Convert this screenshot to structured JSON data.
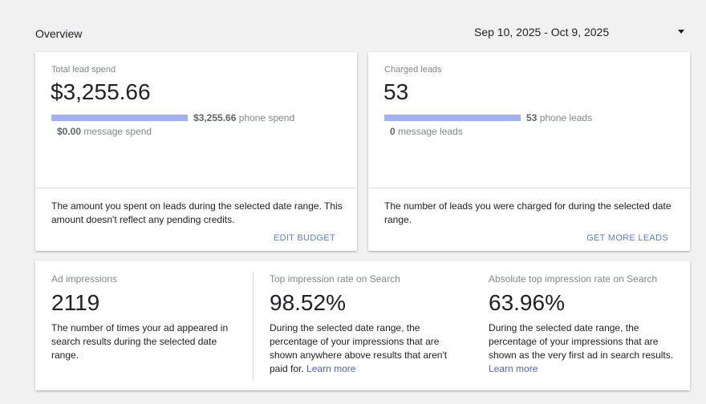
{
  "header": {
    "title": "Overview",
    "date_range": "Sep 10, 2025 - Oct 9, 2025"
  },
  "spend_card": {
    "label": "Total lead spend",
    "value": "$3,255.66",
    "bar_amount": "$3,255.66",
    "bar_suffix": "phone spend",
    "sub_amount": "$0.00",
    "sub_suffix": "message spend",
    "description": "The amount you spent on leads during the selected date range. This amount doesn't reflect any pending credits.",
    "action": "EDIT BUDGET"
  },
  "leads_card": {
    "label": "Charged leads",
    "value": "53",
    "bar_amount": "53",
    "bar_suffix": "phone leads",
    "sub_amount": "0",
    "sub_suffix": "message leads",
    "description": "The number of leads you were charged for during the selected date range.",
    "action": "GET MORE LEADS"
  },
  "impressions_card": {
    "metrics": [
      {
        "label": "Ad impressions",
        "value": "2119",
        "description": "The number of times your ad appeared in search results during the selected date range."
      },
      {
        "label": "Top impression rate on Search",
        "value": "98.52%",
        "description": "During the selected date range, the percentage of your impressions that are shown anywhere above results that aren't paid for.",
        "link": "Learn more"
      },
      {
        "label": "Absolute top impression rate on Search",
        "value": "63.96%",
        "description": "During the selected date range, the percentage of your impressions that are shown as the very first ad in search results.",
        "link": "Learn more"
      }
    ]
  },
  "colors": {
    "bar": "#9fb0f5",
    "action": "#5c7be0",
    "link": "#4a63c9"
  }
}
